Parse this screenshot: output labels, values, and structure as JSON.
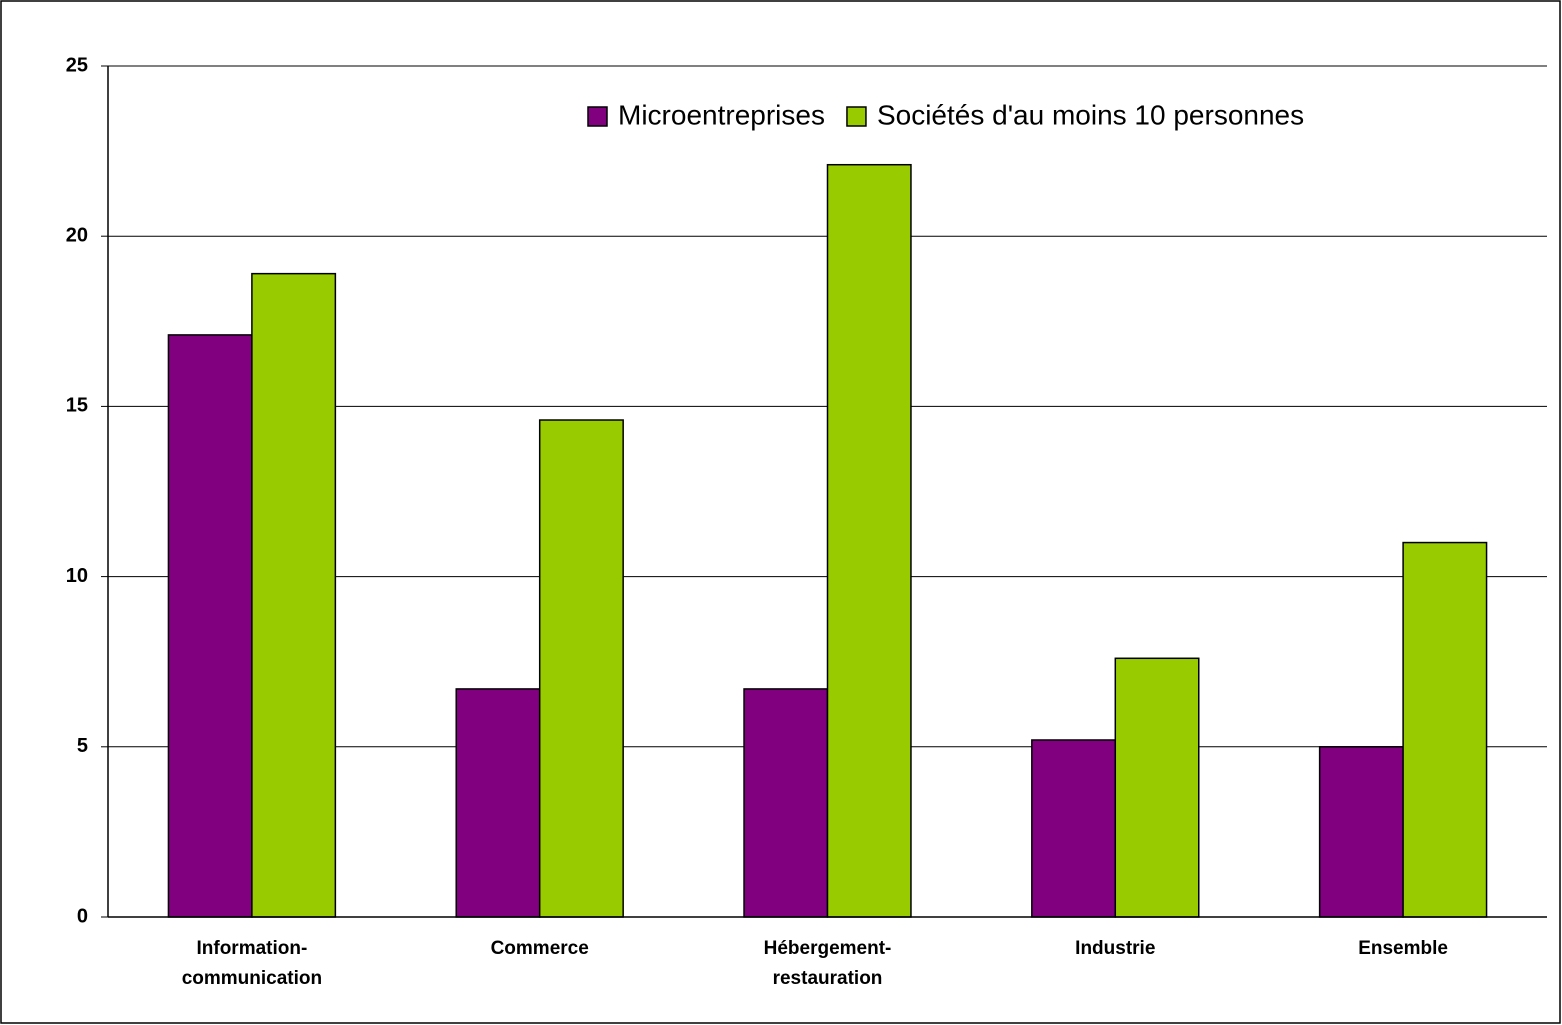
{
  "chart_data": {
    "type": "bar",
    "categories": [
      "Information-communication",
      "Commerce",
      "Hébergement-restauration",
      "Industrie",
      "Ensemble"
    ],
    "series": [
      {
        "name": "Microentreprises",
        "color": "#800080",
        "values": [
          17.1,
          6.7,
          6.7,
          5.2,
          5.0
        ]
      },
      {
        "name": "Sociétés d'au moins 10 personnes",
        "color": "#99cc00",
        "values": [
          18.9,
          14.6,
          22.1,
          7.6,
          11.0
        ]
      }
    ],
    "ylim": [
      0,
      25
    ],
    "yticks": [
      0,
      5,
      10,
      15,
      20,
      25
    ],
    "grid": true,
    "legend": "top"
  }
}
